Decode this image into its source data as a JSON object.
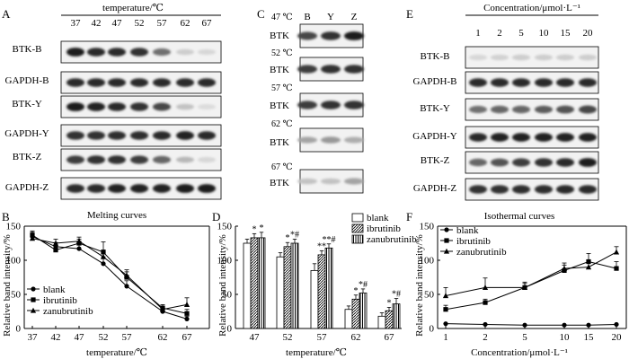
{
  "panels": {
    "A": {
      "letter": "A",
      "header": "temperature/℃",
      "lanes": [
        "37",
        "42",
        "47",
        "52",
        "57",
        "62",
        "67"
      ],
      "rows": [
        {
          "label": "BTK-B",
          "intensity": [
            0.95,
            0.9,
            0.9,
            0.85,
            0.55,
            0.1,
            0.05
          ]
        },
        {
          "label": "GAPDH-B",
          "intensity": [
            0.9,
            0.9,
            0.9,
            0.9,
            0.9,
            0.9,
            0.9
          ]
        },
        {
          "label": "BTK-Y",
          "intensity": [
            0.95,
            0.92,
            0.9,
            0.85,
            0.75,
            0.15,
            0.03
          ]
        },
        {
          "label": "GAPDH-Y",
          "intensity": [
            0.85,
            0.85,
            0.88,
            0.88,
            0.9,
            0.92,
            0.9
          ]
        },
        {
          "label": "BTK-Z",
          "intensity": [
            0.8,
            0.85,
            0.85,
            0.8,
            0.6,
            0.2,
            0.05
          ]
        },
        {
          "label": "GAPDH-Z",
          "intensity": [
            0.9,
            0.9,
            0.92,
            0.92,
            0.92,
            0.95,
            0.95
          ]
        }
      ]
    },
    "C": {
      "letter": "C",
      "lanes": [
        "B",
        "Y",
        "Z"
      ],
      "rows": [
        {
          "temp": "47 ℃",
          "label": "BTK",
          "intensity": [
            0.75,
            0.85,
            0.95
          ]
        },
        {
          "temp": "52 ℃",
          "label": "BTK",
          "intensity": [
            0.8,
            0.85,
            0.85
          ]
        },
        {
          "temp": "57 ℃",
          "label": "BTK",
          "intensity": [
            0.8,
            0.85,
            0.85
          ]
        },
        {
          "temp": "62 ℃",
          "label": "BTK",
          "intensity": [
            0.3,
            0.35,
            0.25
          ]
        },
        {
          "temp": "67 ℃",
          "label": "BTK",
          "intensity": [
            0.15,
            0.15,
            0.3
          ]
        }
      ]
    },
    "E": {
      "letter": "E",
      "header": "Concentration/μmol·L⁻¹",
      "lanes": [
        "1",
        "2",
        "5",
        "10",
        "15",
        "20"
      ],
      "rows": [
        {
          "label": "BTK-B",
          "intensity": [
            0.05,
            0.08,
            0.1,
            0.1,
            0.1,
            0.1
          ]
        },
        {
          "label": "GAPDH-B",
          "intensity": [
            0.9,
            0.9,
            0.9,
            0.9,
            0.9,
            0.9
          ]
        },
        {
          "label": "BTK-Y",
          "intensity": [
            0.55,
            0.6,
            0.6,
            0.65,
            0.7,
            0.75
          ]
        },
        {
          "label": "GAPDH-Y",
          "intensity": [
            0.9,
            0.92,
            0.92,
            0.92,
            0.92,
            0.92
          ]
        },
        {
          "label": "BTK-Z",
          "intensity": [
            0.6,
            0.7,
            0.8,
            0.85,
            0.9,
            0.95
          ]
        },
        {
          "label": "GAPDH-Z",
          "intensity": [
            0.85,
            0.85,
            0.88,
            0.88,
            0.9,
            0.9
          ]
        }
      ]
    }
  },
  "chart_data": [
    {
      "letter": "B",
      "type": "line",
      "title": "Melting curves",
      "xlabel": "temperature/℃",
      "ylabel": "Relative band intensity/%",
      "categories": [
        "37",
        "42",
        "47",
        "52",
        "57",
        "62",
        "67"
      ],
      "ylim": [
        0,
        150
      ],
      "yticks": [
        0,
        50,
        100,
        150
      ],
      "legend_position": "lower-left",
      "series": [
        {
          "name": "blank",
          "marker": "circle",
          "values": [
            135,
            120,
            117,
            95,
            62,
            25,
            14
          ],
          "errors": [
            6,
            6,
            6,
            10,
            8,
            4,
            4
          ]
        },
        {
          "name": "ibrutinib",
          "marker": "square",
          "values": [
            137,
            115,
            125,
            112,
            75,
            30,
            22
          ],
          "errors": [
            6,
            6,
            6,
            15,
            8,
            5,
            6
          ]
        },
        {
          "name": "zanubrutinib",
          "marker": "triangle",
          "values": [
            132,
            125,
            128,
            105,
            78,
            28,
            35
          ],
          "errors": [
            6,
            6,
            6,
            10,
            8,
            5,
            10
          ]
        }
      ]
    },
    {
      "letter": "D",
      "type": "bar",
      "xlabel": "temperature/℃",
      "ylabel": "Relative band intensity/%",
      "categories": [
        "47",
        "52",
        "57",
        "62",
        "67"
      ],
      "ylim": [
        0,
        150
      ],
      "yticks": [
        0,
        50,
        100,
        150
      ],
      "legend_position": "top-right",
      "series": [
        {
          "name": "blank",
          "pattern": "white",
          "values": [
            125,
            105,
            85,
            28,
            18
          ],
          "errors": [
            6,
            6,
            10,
            5,
            5
          ]
        },
        {
          "name": "ibrutinib",
          "pattern": "diagonal",
          "values": [
            133,
            120,
            108,
            43,
            26
          ],
          "errors": [
            6,
            6,
            6,
            6,
            5
          ]
        },
        {
          "name": "zanubrutinib",
          "pattern": "vertical",
          "values": [
            133,
            125,
            118,
            52,
            36
          ],
          "errors": [
            8,
            6,
            6,
            6,
            8
          ]
        }
      ],
      "annotations": [
        {
          "category": "47",
          "series": 1,
          "text": "*"
        },
        {
          "category": "47",
          "series": 2,
          "text": "*"
        },
        {
          "category": "52",
          "series": 1,
          "text": "*"
        },
        {
          "category": "52",
          "series": 2,
          "text": "*#"
        },
        {
          "category": "57",
          "series": 1,
          "text": "**"
        },
        {
          "category": "57",
          "series": 2,
          "text": "**#"
        },
        {
          "category": "62",
          "series": 1,
          "text": "*"
        },
        {
          "category": "62",
          "series": 2,
          "text": "*#"
        },
        {
          "category": "67",
          "series": 1,
          "text": "*"
        },
        {
          "category": "67",
          "series": 2,
          "text": "*#"
        }
      ]
    },
    {
      "letter": "F",
      "type": "line",
      "title": "Isothermal curves",
      "xlabel": "Concentration/μmol·L⁻¹",
      "ylabel": "Relative band intensity/%",
      "categories": [
        "1",
        "2",
        "5",
        "10",
        "15",
        "20"
      ],
      "ylim": [
        0,
        150
      ],
      "yticks": [
        0,
        50,
        100,
        150
      ],
      "legend_position": "top-left",
      "series": [
        {
          "name": "blank",
          "marker": "circle",
          "values": [
            7,
            6,
            5,
            5,
            5,
            6
          ],
          "errors": [
            1,
            1,
            1,
            1,
            1,
            1
          ]
        },
        {
          "name": "ibrutinib",
          "marker": "square",
          "values": [
            28,
            38,
            60,
            85,
            98,
            88
          ],
          "errors": [
            6,
            5,
            6,
            8,
            12,
            10
          ]
        },
        {
          "name": "zanubrutinib",
          "marker": "triangle",
          "values": [
            48,
            60,
            60,
            88,
            90,
            112
          ],
          "errors": [
            12,
            14,
            8,
            8,
            10,
            8
          ]
        }
      ]
    }
  ]
}
